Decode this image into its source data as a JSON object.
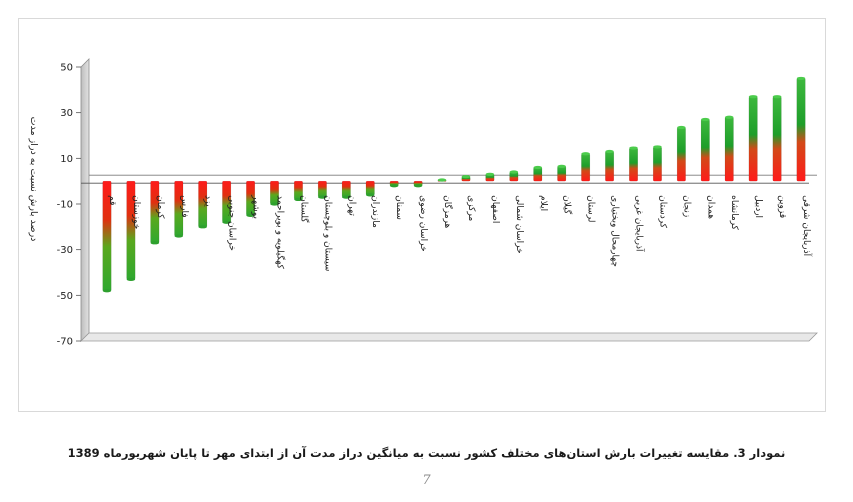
{
  "chart_data": {
    "type": "bar",
    "ylabel": "درصد بارش نسبت به دراز مدت",
    "ylim": [
      -70,
      50
    ],
    "yticks": [
      50,
      30,
      10,
      -10,
      -30,
      -50,
      -70
    ],
    "ytick_labels": [
      "50",
      "30",
      "10",
      "-10",
      "-30",
      "-50",
      "-70"
    ],
    "grid": false,
    "categories": [
      "قم",
      "خوزستان",
      "کرمان",
      "فارس",
      "یزد",
      "خراسان جنوبی",
      "بوشهر",
      "کهگیلویه و بویراحمد",
      "گلستان",
      "سیستان و بلوچستان",
      "تهران",
      "مازندران",
      "سمنان",
      "خراسان رضوی",
      "هرمزگان",
      "مرکزی",
      "اصفهان",
      "خراسان شمالی",
      "ایلام",
      "گیلان",
      "لرستان",
      "چهارمحال وبختیاری",
      "آذربایجان غربی",
      "کردستان",
      "زنجان",
      "همدان",
      "کرمانشاه",
      "اردبیل",
      "قزوین",
      "آذربایجان شرقی"
    ],
    "values": [
      -48,
      -43,
      -27,
      -24,
      -20,
      -18,
      -15,
      -10,
      -8,
      -7,
      -7,
      -6,
      -2,
      -2,
      0.5,
      2,
      3,
      4,
      6,
      6.5,
      12,
      13,
      14.5,
      15,
      23.5,
      27,
      28,
      37,
      37,
      45
    ]
  },
  "caption": "نمودار 3. مقایسه تغییرات بارش استان‌های مختلف کشور نسبت به میانگین دراز مدت آن از ابتدای مهر تا پایان شهریورماه 1389",
  "page_number": "7"
}
